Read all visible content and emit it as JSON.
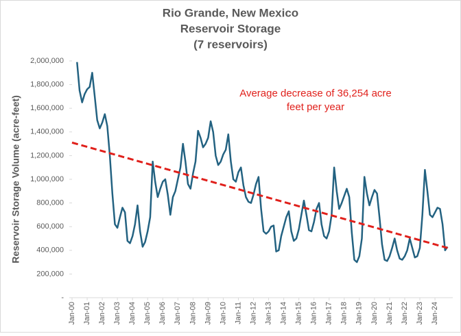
{
  "chart_data": {
    "type": "line",
    "title": [
      "Rio Grande, New Mexico",
      "Reservoir Storage",
      "(7 reservoirs)"
    ],
    "y_label": "Reservoir Storage Volume (acre-feet)",
    "annotation": [
      "Average decrease of 36,254 acre",
      "feet per year"
    ],
    "categories": [
      "Jan-00",
      null,
      null,
      null,
      null,
      null,
      "Jan-01",
      null,
      null,
      null,
      null,
      null,
      "Jan-02",
      null,
      null,
      null,
      null,
      null,
      "Jan-03",
      null,
      null,
      null,
      null,
      null,
      "Jan-04",
      null,
      null,
      null,
      null,
      null,
      "Jan-05",
      null,
      null,
      null,
      null,
      null,
      "Jan-06",
      null,
      null,
      null,
      null,
      null,
      "Jan-07",
      null,
      null,
      null,
      null,
      null,
      "Jan-08",
      null,
      null,
      null,
      null,
      null,
      "Jan-09",
      null,
      null,
      null,
      null,
      null,
      "Jan-10",
      null,
      null,
      null,
      null,
      null,
      "Jan-11",
      null,
      null,
      null,
      null,
      null,
      "Jan-12",
      null,
      null,
      null,
      null,
      null,
      "Jan-13",
      null,
      null,
      null,
      null,
      null,
      "Jan-14",
      null,
      null,
      null,
      null,
      null,
      "Jan-15",
      null,
      null,
      null,
      null,
      null,
      "Jan-16",
      null,
      null,
      null,
      null,
      null,
      "Jan-17",
      null,
      null,
      null,
      null,
      null,
      "Jan-18",
      null,
      null,
      null,
      null,
      null,
      "Jan-19",
      null,
      null,
      null,
      null,
      null,
      "Jan-20",
      null,
      null,
      null,
      null,
      null,
      "Jan-21",
      null,
      null,
      null,
      null,
      null,
      "Jan-22",
      null,
      null,
      null,
      null,
      null,
      "Jan-23",
      null,
      null,
      null,
      null,
      null,
      "Jan-24",
      null,
      null,
      null,
      null,
      null
    ],
    "values": [
      null,
      null,
      1990000,
      1750000,
      1650000,
      1720000,
      1760000,
      1780000,
      1900000,
      1700000,
      1500000,
      1430000,
      1480000,
      1550000,
      1450000,
      1200000,
      880000,
      620000,
      590000,
      680000,
      760000,
      720000,
      480000,
      460000,
      520000,
      620000,
      780000,
      560000,
      430000,
      470000,
      560000,
      680000,
      1150000,
      980000,
      850000,
      920000,
      980000,
      1000000,
      870000,
      700000,
      850000,
      900000,
      1000000,
      1100000,
      1300000,
      1150000,
      960000,
      920000,
      1050000,
      1150000,
      1410000,
      1350000,
      1270000,
      1300000,
      1350000,
      1490000,
      1400000,
      1200000,
      1120000,
      1150000,
      1210000,
      1250000,
      1380000,
      1150000,
      1000000,
      980000,
      1060000,
      1100000,
      950000,
      850000,
      810000,
      800000,
      870000,
      960000,
      1020000,
      750000,
      560000,
      540000,
      560000,
      600000,
      610000,
      390000,
      400000,
      520000,
      600000,
      680000,
      730000,
      560000,
      480000,
      500000,
      580000,
      700000,
      820000,
      700000,
      570000,
      560000,
      640000,
      750000,
      800000,
      620000,
      520000,
      500000,
      560000,
      700000,
      1100000,
      900000,
      750000,
      800000,
      860000,
      920000,
      850000,
      550000,
      320000,
      300000,
      350000,
      500000,
      1020000,
      880000,
      780000,
      850000,
      910000,
      880000,
      680000,
      450000,
      320000,
      310000,
      350000,
      420000,
      500000,
      400000,
      330000,
      320000,
      350000,
      400000,
      500000,
      420000,
      340000,
      350000,
      420000,
      700000,
      1080000,
      900000,
      700000,
      680000,
      720000,
      760000,
      750000,
      620000,
      400000,
      430000
    ],
    "color": "#236281",
    "trend": {
      "start": 1310000,
      "end": 420000,
      "color": "#e0201b"
    },
    "ylim": [
      0,
      2000000
    ],
    "yticks": [
      {
        "value": 0,
        "label": "-"
      },
      {
        "value": 200000,
        "label": "200,000"
      },
      {
        "value": 400000,
        "label": "400,000"
      },
      {
        "value": 600000,
        "label": "600,000"
      },
      {
        "value": 800000,
        "label": "800,000"
      },
      {
        "value": 1000000,
        "label": "1,000,000"
      },
      {
        "value": 1200000,
        "label": "1,200,000"
      },
      {
        "value": 1400000,
        "label": "1,400,000"
      },
      {
        "value": 1600000,
        "label": "1,600,000"
      },
      {
        "value": 1800000,
        "label": "1,800,000"
      },
      {
        "value": 2000000,
        "label": "2,000,000"
      }
    ],
    "grid": false
  }
}
